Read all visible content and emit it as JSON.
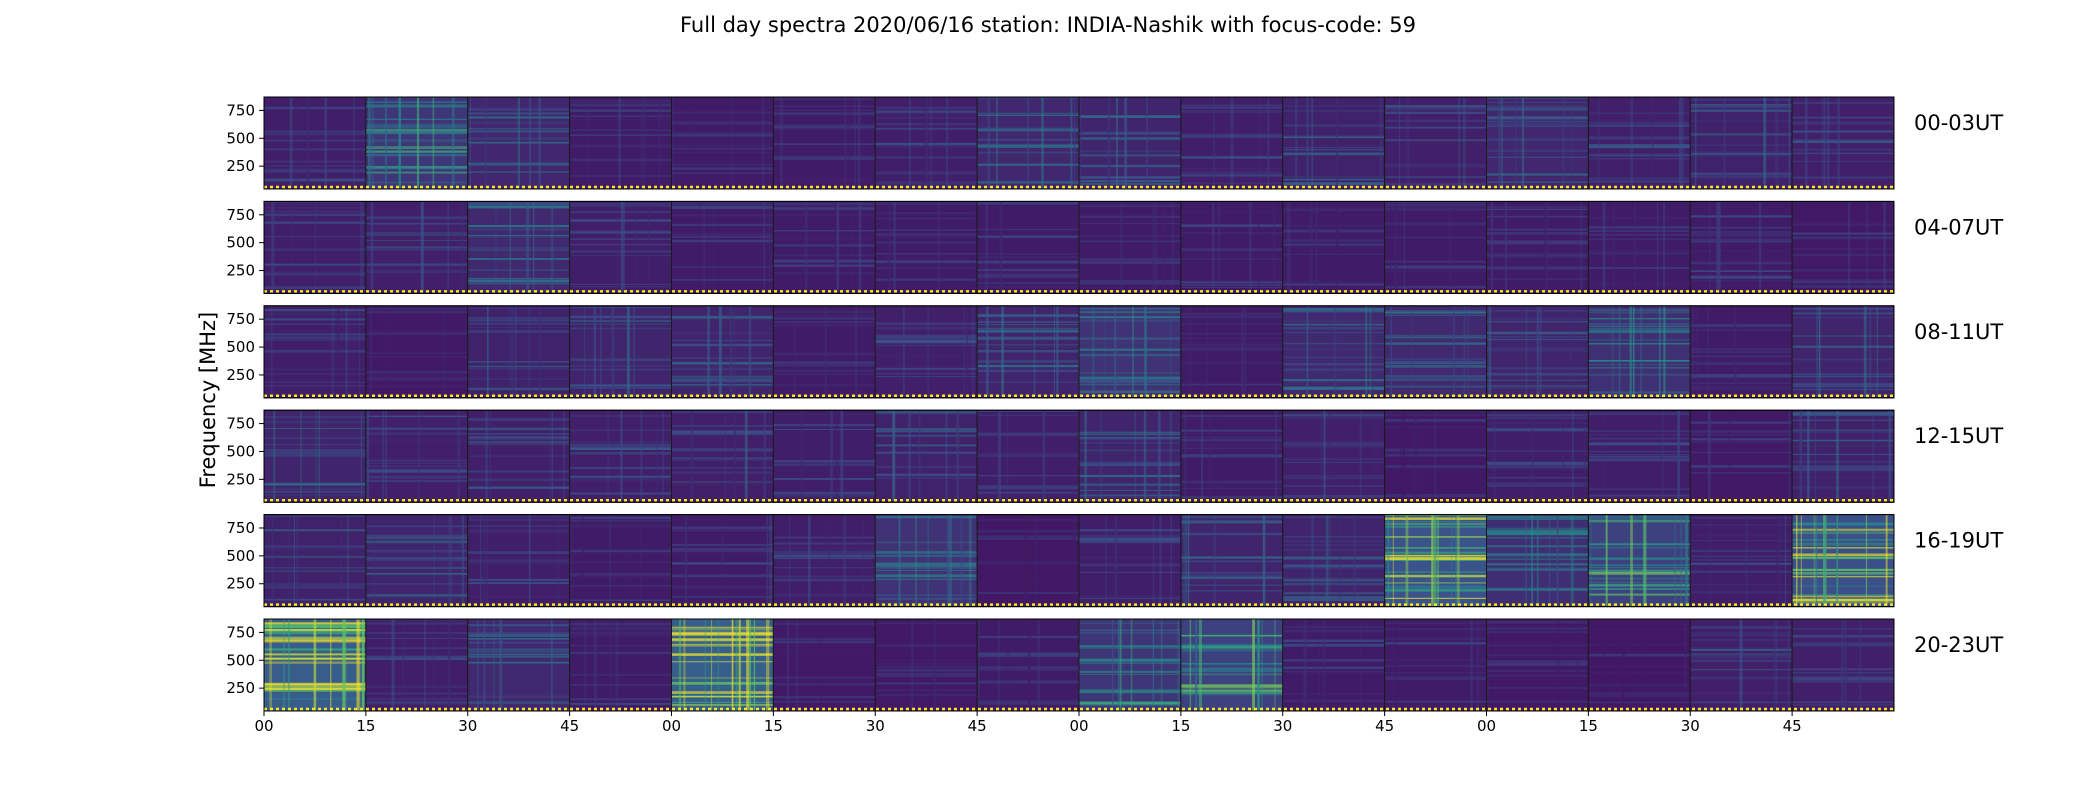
{
  "chart_data": {
    "type": "heatmap",
    "title": "Full day spectra 2020/06/16 station: INDIA-Nashik with focus-code: 59",
    "ylabel": "Frequency [MHz]",
    "xlabel": "",
    "yticks": [
      "750",
      "500",
      "250"
    ],
    "ytick_values": [
      750,
      500,
      250
    ],
    "ylim": [
      45,
      870
    ],
    "xticks": [
      "00",
      "15",
      "30",
      "45",
      "00",
      "15",
      "30",
      "45",
      "00",
      "15",
      "30",
      "45",
      "00",
      "15",
      "30",
      "45"
    ],
    "minutes_per_panel": 15,
    "panels_per_row": 16,
    "colormap": "viridis",
    "colormap_colors": [
      "#440154",
      "#3b528b",
      "#21918c",
      "#5ec962",
      "#fde725"
    ],
    "grid": false,
    "rows": [
      {
        "label": "00-03UT",
        "panel_intensity": [
          0.15,
          0.35,
          0.22,
          0.12,
          0.12,
          0.12,
          0.14,
          0.22,
          0.2,
          0.14,
          0.18,
          0.16,
          0.22,
          0.16,
          0.18,
          0.16
        ]
      },
      {
        "label": "04-07UT",
        "panel_intensity": [
          0.14,
          0.16,
          0.24,
          0.14,
          0.12,
          0.12,
          0.12,
          0.12,
          0.12,
          0.12,
          0.12,
          0.12,
          0.12,
          0.12,
          0.12,
          0.1
        ]
      },
      {
        "label": "08-11UT",
        "panel_intensity": [
          0.14,
          0.1,
          0.18,
          0.2,
          0.2,
          0.12,
          0.16,
          0.2,
          0.32,
          0.12,
          0.24,
          0.24,
          0.2,
          0.3,
          0.12,
          0.2
        ]
      },
      {
        "label": "12-15UT",
        "panel_intensity": [
          0.2,
          0.16,
          0.16,
          0.16,
          0.16,
          0.14,
          0.18,
          0.14,
          0.2,
          0.12,
          0.16,
          0.1,
          0.14,
          0.14,
          0.1,
          0.18
        ]
      },
      {
        "label": "16-19UT",
        "panel_intensity": [
          0.18,
          0.2,
          0.14,
          0.12,
          0.12,
          0.14,
          0.32,
          0.08,
          0.14,
          0.2,
          0.2,
          0.62,
          0.28,
          0.45,
          0.14,
          0.58
        ]
      },
      {
        "label": "20-23UT",
        "panel_intensity": [
          0.72,
          0.14,
          0.24,
          0.12,
          0.75,
          0.1,
          0.1,
          0.12,
          0.34,
          0.45,
          0.12,
          0.12,
          0.1,
          0.08,
          0.16,
          0.16
        ]
      }
    ]
  }
}
